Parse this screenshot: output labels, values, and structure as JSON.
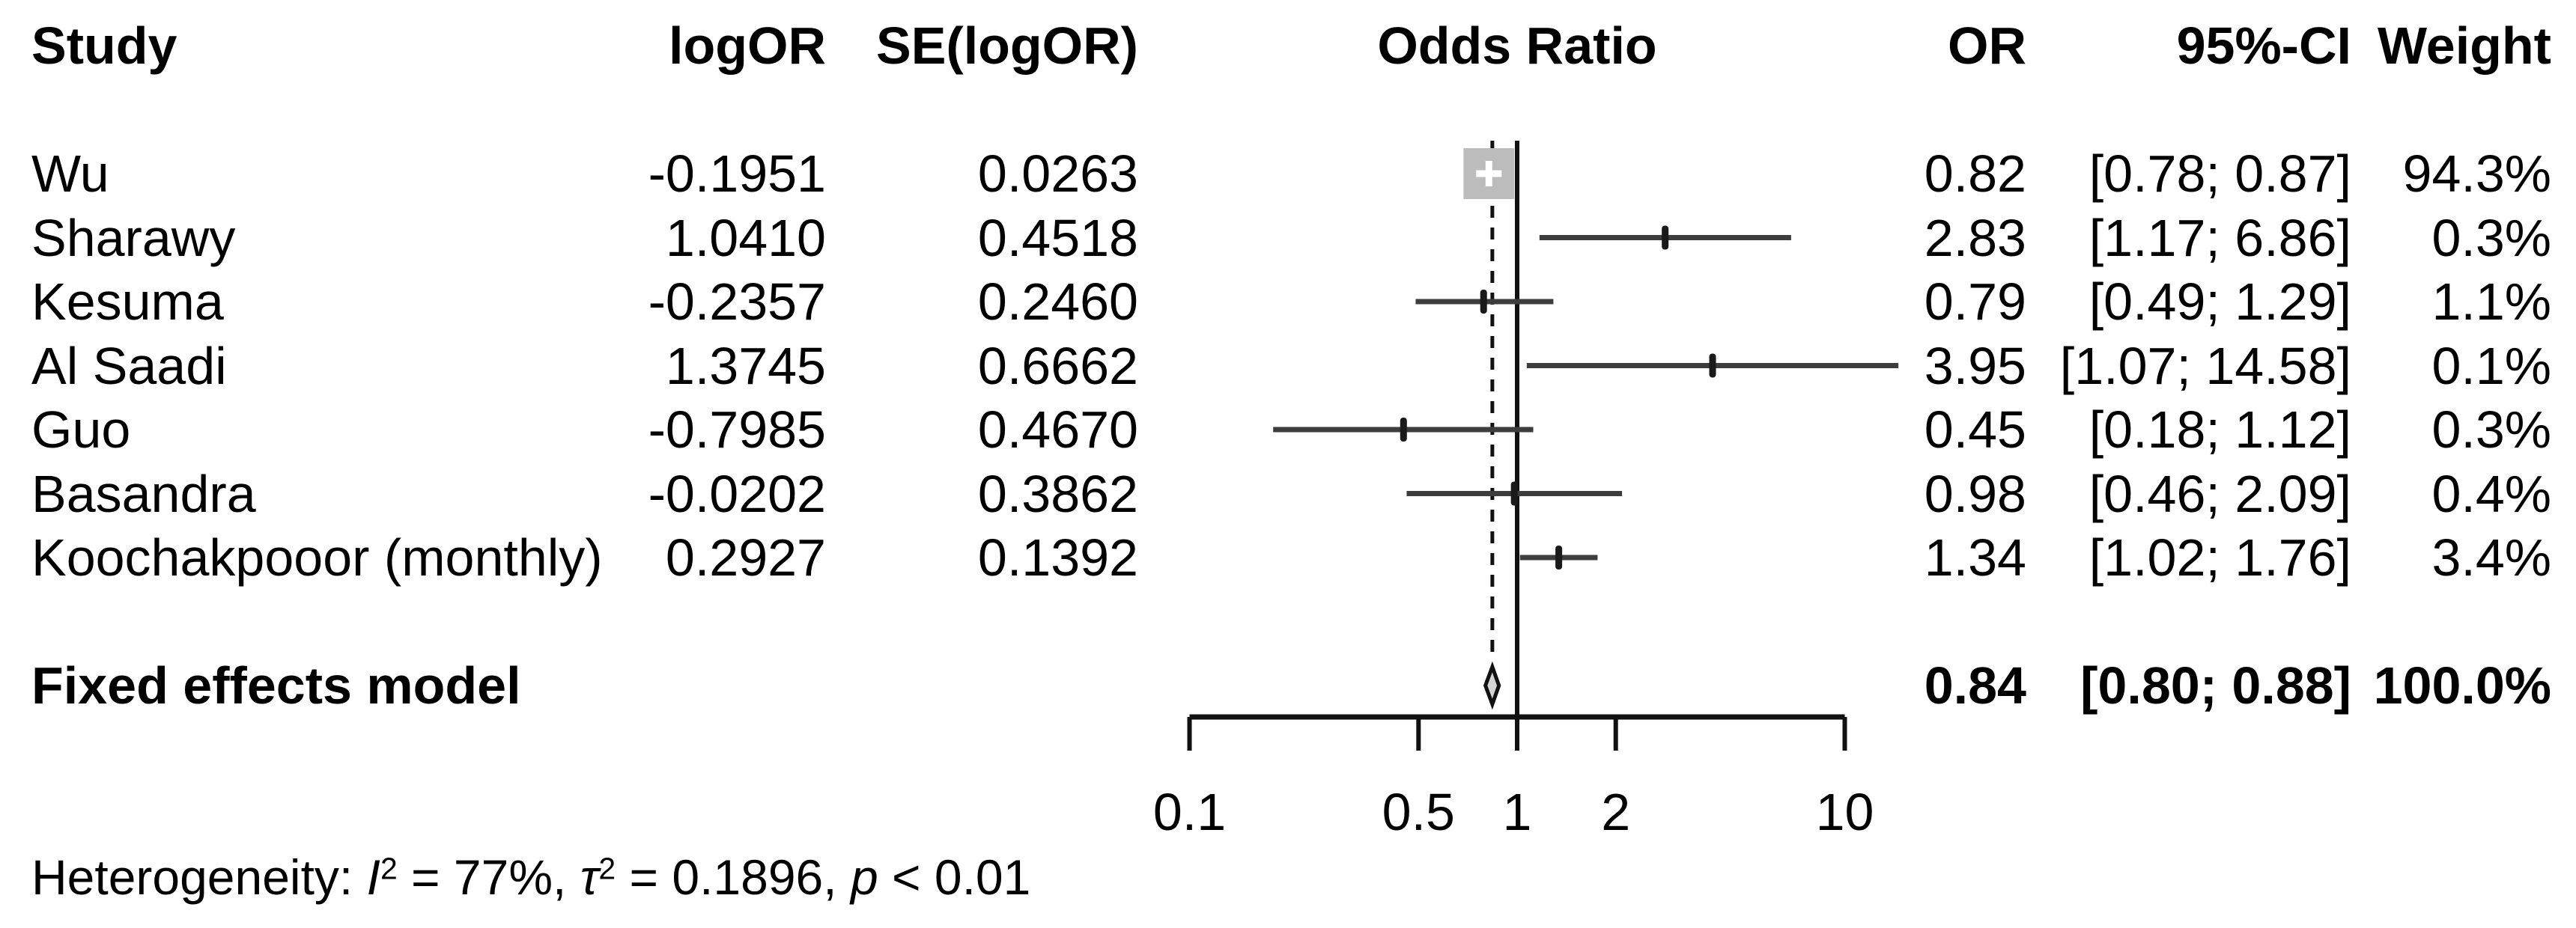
{
  "header": {
    "study": "Study",
    "logor": "logOR",
    "se": "SE(logOR)",
    "plot_title": "Odds Ratio",
    "or": "OR",
    "ci": "95%-CI",
    "weight": "Weight"
  },
  "heterogeneity": {
    "prefix": "Heterogeneity: ",
    "i_symbol": "I",
    "i_sup": "2",
    "i_value": " = 77%, ",
    "tau_symbol": "τ",
    "tau_sup": "2",
    "tau_value": " = 0.1896, ",
    "p_symbol": "p",
    "p_value": " < 0.01"
  },
  "chart_data": {
    "type": "forest",
    "x_scale": "log",
    "axis": {
      "ticks": [
        0.1,
        0.5,
        1,
        2,
        10
      ],
      "tick_labels": [
        "0.1",
        "0.5",
        "1",
        "2",
        "10"
      ],
      "range": [
        0.1,
        10
      ],
      "reference_line": 1,
      "summary_dashed_line": 0.84
    },
    "studies": [
      {
        "name": "Wu",
        "logor": "-0.1951",
        "se": "0.0263",
        "or_text": "0.82",
        "ci_text": "[0.78; 0.87]",
        "weight_text": "94.3%",
        "or": 0.82,
        "lo": 0.78,
        "hi": 0.87,
        "weight": 94.3
      },
      {
        "name": "Sharawy",
        "logor": "1.0410",
        "se": "0.4518",
        "or_text": "2.83",
        "ci_text": "[1.17; 6.86]",
        "weight_text": "0.3%",
        "or": 2.83,
        "lo": 1.17,
        "hi": 6.86,
        "weight": 0.3
      },
      {
        "name": "Kesuma",
        "logor": "-0.2357",
        "se": "0.2460",
        "or_text": "0.79",
        "ci_text": "[0.49; 1.29]",
        "weight_text": "1.1%",
        "or": 0.79,
        "lo": 0.49,
        "hi": 1.29,
        "weight": 1.1
      },
      {
        "name": "Al Saadi",
        "logor": "1.3745",
        "se": "0.6662",
        "or_text": "3.95",
        "ci_text": "[1.07; 14.58]",
        "weight_text": "0.1%",
        "or": 3.95,
        "lo": 1.07,
        "hi": 14.58,
        "weight": 0.1
      },
      {
        "name": "Guo",
        "logor": "-0.7985",
        "se": "0.4670",
        "or_text": "0.45",
        "ci_text": "[0.18; 1.12]",
        "weight_text": "0.3%",
        "or": 0.45,
        "lo": 0.18,
        "hi": 1.12,
        "weight": 0.3
      },
      {
        "name": "Basandra",
        "logor": "-0.0202",
        "se": "0.3862",
        "or_text": "0.98",
        "ci_text": "[0.46; 2.09]",
        "weight_text": "0.4%",
        "or": 0.98,
        "lo": 0.46,
        "hi": 2.09,
        "weight": 0.4
      },
      {
        "name": "Koochakpooor (monthly)",
        "logor": "0.2927",
        "se": "0.1392",
        "or_text": "1.34",
        "ci_text": "[1.02; 1.76]",
        "weight_text": "3.4%",
        "or": 1.34,
        "lo": 1.02,
        "hi": 1.76,
        "weight": 3.4
      }
    ],
    "summary": {
      "label": "Fixed effects model",
      "or_text": "0.84",
      "ci_text": "[0.80; 0.88]",
      "weight_text": "100.0%",
      "or": 0.84,
      "lo": 0.8,
      "hi": 0.88,
      "weight": 100.0
    },
    "colors": {
      "square_fill": "#bcbcbc",
      "square_cross": "#ffffff",
      "ci_line": "#3d3d3d",
      "marker": "#1a1a1a",
      "axis": "#111111",
      "diamond_fill": "#d4d4d4",
      "diamond_stroke": "#111111",
      "text": "#000000"
    }
  }
}
